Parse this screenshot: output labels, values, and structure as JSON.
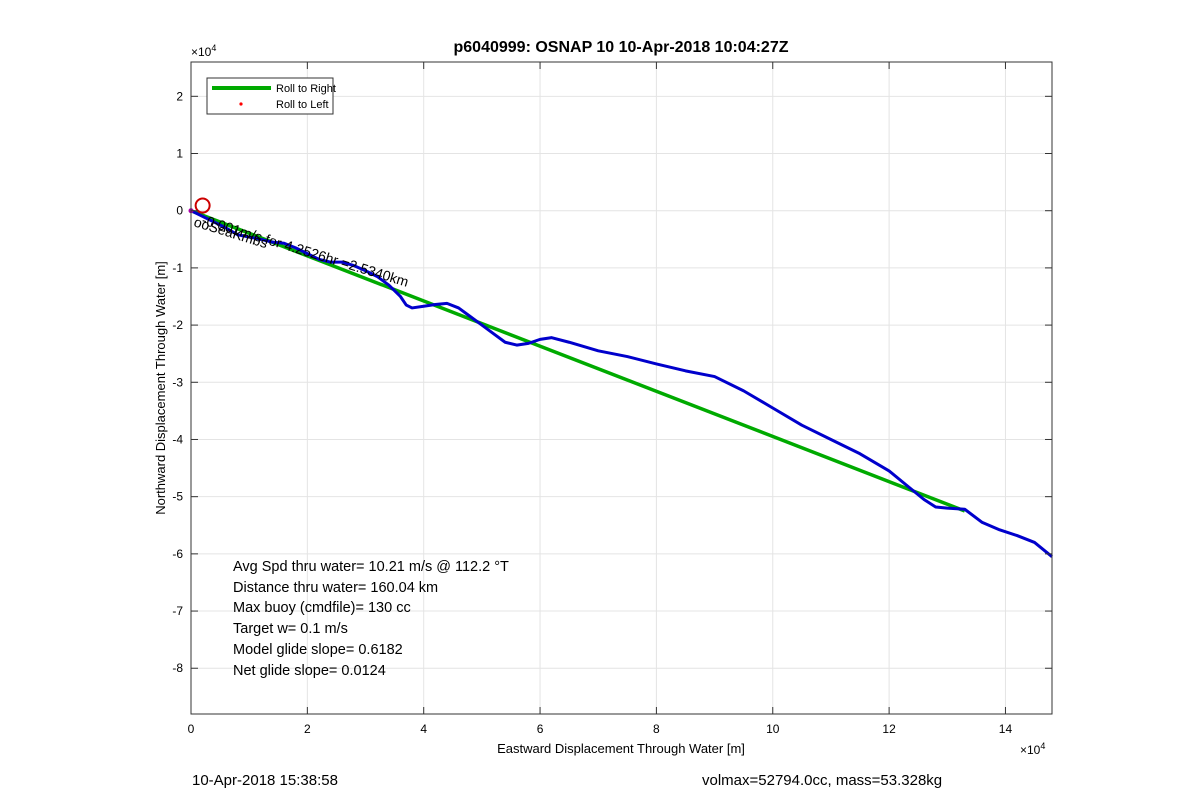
{
  "chart_data": {
    "type": "line",
    "title": "p6040999: OSNAP 10 10-Apr-2018 10:04:27Z",
    "xlabel": "Eastward Displacement Through Water [m]",
    "ylabel": "Northward Displacement Through Water [m]",
    "x_exponent_label": "×10",
    "y_exponent_label": "×10",
    "exponent": "4",
    "xlim": [
      0,
      148000
    ],
    "ylim": [
      -88000,
      26000
    ],
    "xticks": [
      0,
      20000,
      40000,
      60000,
      80000,
      100000,
      120000,
      140000
    ],
    "xtick_labels": [
      "0",
      "2",
      "4",
      "6",
      "8",
      "10",
      "12",
      "14"
    ],
    "yticks": [
      20000,
      10000,
      0,
      -10000,
      -20000,
      -30000,
      -40000,
      -50000,
      -60000,
      -70000,
      -80000
    ],
    "ytick_labels": [
      "2",
      "1",
      "0",
      "-1",
      "-2",
      "-3",
      "-4",
      "-5",
      "-6",
      "-7",
      "-8"
    ],
    "grid": true,
    "legend_location": "top-left",
    "legend": [
      {
        "label": "Roll to Right",
        "color": "#00aa00",
        "marker": "line"
      },
      {
        "label": "Roll to Left",
        "color": "#ff0000",
        "marker": "dot"
      }
    ],
    "series": [
      {
        "color": "#00aa00",
        "x": [
          0,
          133000
        ],
        "y": [
          0,
          -52500
        ]
      },
      {
        "color": "#0000cc",
        "x": [
          0,
          3000,
          6000,
          8000,
          10000,
          12000,
          14000,
          16000,
          18000,
          20000,
          22000,
          24000,
          26000,
          28000,
          30000,
          32000,
          34000,
          36000,
          37000,
          38000,
          40000,
          42000,
          44000,
          46000,
          48000,
          50000,
          52000,
          54000,
          56000,
          58000,
          60000,
          62000,
          65000,
          70000,
          75000,
          80000,
          85000,
          90000,
          95000,
          100000,
          105000,
          110000,
          115000,
          120000,
          123000,
          126000,
          128000,
          130000,
          133000,
          136000,
          139000,
          142000,
          145000,
          148000
        ],
        "y": [
          0,
          -1500,
          -3000,
          -4200,
          -4600,
          -5000,
          -5500,
          -5700,
          -6500,
          -7500,
          -8500,
          -9000,
          -9000,
          -9600,
          -10500,
          -11500,
          -13000,
          -15000,
          -16500,
          -17000,
          -16700,
          -16400,
          -16200,
          -17000,
          -18500,
          -20000,
          -21500,
          -23000,
          -23500,
          -23200,
          -22500,
          -22200,
          -23000,
          -24500,
          -25500,
          -26800,
          -28000,
          -29000,
          -31500,
          -34500,
          -37500,
          -40000,
          -42500,
          -45500,
          -48000,
          -50500,
          -51800,
          -52000,
          -52200,
          -54500,
          -55800,
          -56800,
          -58000,
          -60500
        ]
      }
    ],
    "start_marker": {
      "x": 2000,
      "y": 900,
      "color": "#cc0000"
    },
    "start_labels": [
      "ooSeaKmbs",
      "-0.001m/s for 4.2526hr =2.5340km"
    ],
    "annotations": [
      "Avg Spd thru water= 10.21 m/s @ 112.2 °T",
      "Distance thru water= 160.04 km",
      "Max buoy (cmdfile)= 130 cc",
      "Target w= 0.1 m/s",
      "Model glide slope= 0.6182",
      "Net glide slope= 0.0124"
    ]
  },
  "footer": {
    "left": "10-Apr-2018 15:38:58",
    "right": "volmax=52794.0cc, mass=53.328kg"
  }
}
